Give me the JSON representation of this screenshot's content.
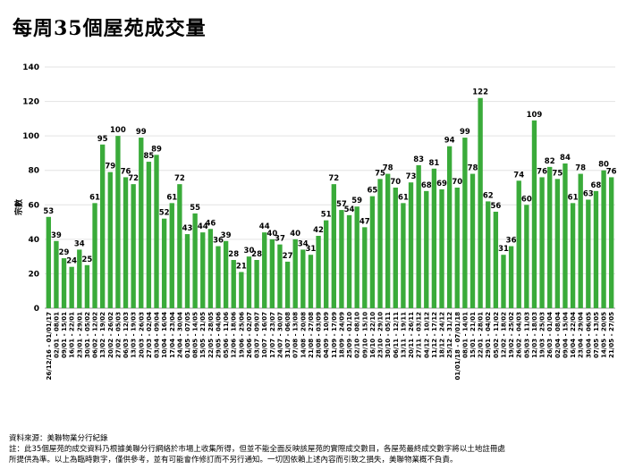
{
  "title": "每周35個屋苑成交量",
  "footer": {
    "source": "資料來源：美聯物業分行紀錄",
    "note_line1": "註：此35個屋苑的成交資料乃根據美聯分行網絡於市場上收集所得，但並不能全面反映該屋苑的實際成交數目，各屋苑最終成交數字將以土地註冊處",
    "note_line2": "所提供為準。以上為臨時數字，僅供參考，並有可能會作修訂而不另行通知。一切因依賴上述內容而引致之損失，美聯物業概不負責。"
  },
  "chart_data": {
    "type": "bar",
    "ylabel": "宗數",
    "ylim": [
      0,
      140
    ],
    "yticks": [
      0,
      20,
      40,
      60,
      80,
      100,
      120,
      140
    ],
    "bar_color": "#3aab3a",
    "categories": [
      "26/12/16 - 01/01/17",
      "02/01 - 08/01",
      "09/01 - 15/01",
      "16/01 - 22/01",
      "23/01 - 29/01",
      "30/01 - 05/02",
      "06/02 - 12/02",
      "13/02 - 19/02",
      "20/02 - 26/02",
      "27/02 - 05/03",
      "06/03 - 12/03",
      "13/03 - 19/03",
      "20/03 - 26/03",
      "27/03 - 02/04",
      "03/04 - 09/04",
      "10/04 - 16/04",
      "17/04 - 23/04",
      "24/04 - 30/04",
      "01/05 - 07/05",
      "08/05 - 14/05",
      "15/05 - 21/05",
      "22/05 - 28/05",
      "29/05 - 04/06",
      "05/06 - 11/06",
      "12/06 - 18/06",
      "19/06 - 25/06",
      "26/06 - 02/07",
      "03/07 - 09/07",
      "10/07 - 16/07",
      "17/07 - 23/07",
      "24/07 - 30/07",
      "31/07 - 06/08",
      "07/08 - 13/08",
      "14/08 - 20/08",
      "21/08 - 27/08",
      "28/08 - 03/09",
      "04/09 - 10/09",
      "11/09 - 17/09",
      "18/09 - 24/09",
      "25/09 - 01/10",
      "02/10 - 08/10",
      "09/10 - 15/10",
      "16/10 - 22/10",
      "23/10 - 29/10",
      "30/10 - 05/11",
      "06/11 - 12/11",
      "13/11 - 19/11",
      "20/11 - 26/11",
      "27/11 - 03/12",
      "04/12 - 10/12",
      "11/12 - 17/12",
      "18/12 - 24/12",
      "25/12 - 31/12",
      "01/01/18 - 07/01/18",
      "08/01 - 14/01",
      "15/01 - 21/01",
      "22/01 - 28/01",
      "29/01 - 04/02",
      "05/02 - 11/02",
      "12/02 - 18/02",
      "19/02 - 25/02",
      "26/02 - 04/03",
      "05/03 - 11/03",
      "12/03 - 18/03",
      "19/03 - 25/03",
      "26/03 - 01/04",
      "02/04 - 08/04",
      "09/04 - 15/04",
      "16/04 - 22/04",
      "23/04 - 29/04",
      "30/04 - 06/05",
      "07/05 - 13/05",
      "14/05 - 20/05",
      "21/05 - 27/05"
    ],
    "values": [
      53,
      39,
      29,
      24,
      34,
      25,
      61,
      95,
      79,
      100,
      76,
      72,
      99,
      85,
      89,
      52,
      61,
      72,
      43,
      55,
      44,
      46,
      36,
      39,
      28,
      21,
      30,
      28,
      44,
      40,
      37,
      27,
      40,
      34,
      31,
      42,
      51,
      72,
      57,
      54,
      59,
      47,
      65,
      75,
      78,
      70,
      61,
      73,
      83,
      68,
      81,
      69,
      94,
      70,
      99,
      78,
      122,
      62,
      56,
      31,
      36,
      74,
      60,
      109,
      76,
      82,
      75,
      84,
      61,
      78,
      63,
      68,
      80,
      76
    ],
    "labels": [
      "53",
      "39",
      "29",
      "24",
      "34",
      "25",
      "61",
      "95",
      "79",
      "100",
      "76",
      "72",
      "99",
      "85",
      "89",
      "52",
      "61",
      "72",
      "43",
      "55",
      "44",
      "46",
      "36",
      "39",
      "28",
      "21",
      "30",
      "28",
      "44",
      "40",
      "37",
      "27",
      "40",
      "34",
      "31",
      "42",
      "51",
      "72",
      "57",
      "54",
      "59",
      "47",
      "65",
      "75",
      "78",
      "70",
      "61",
      "73",
      "83",
      "68",
      "81",
      "69",
      "94",
      "70",
      "99",
      "78",
      "122",
      "62",
      "56",
      "31",
      "36",
      "74",
      "60",
      "109",
      "76",
      "82",
      "75",
      "84",
      "61",
      "78",
      "63",
      "68",
      "80",
      "76"
    ]
  }
}
